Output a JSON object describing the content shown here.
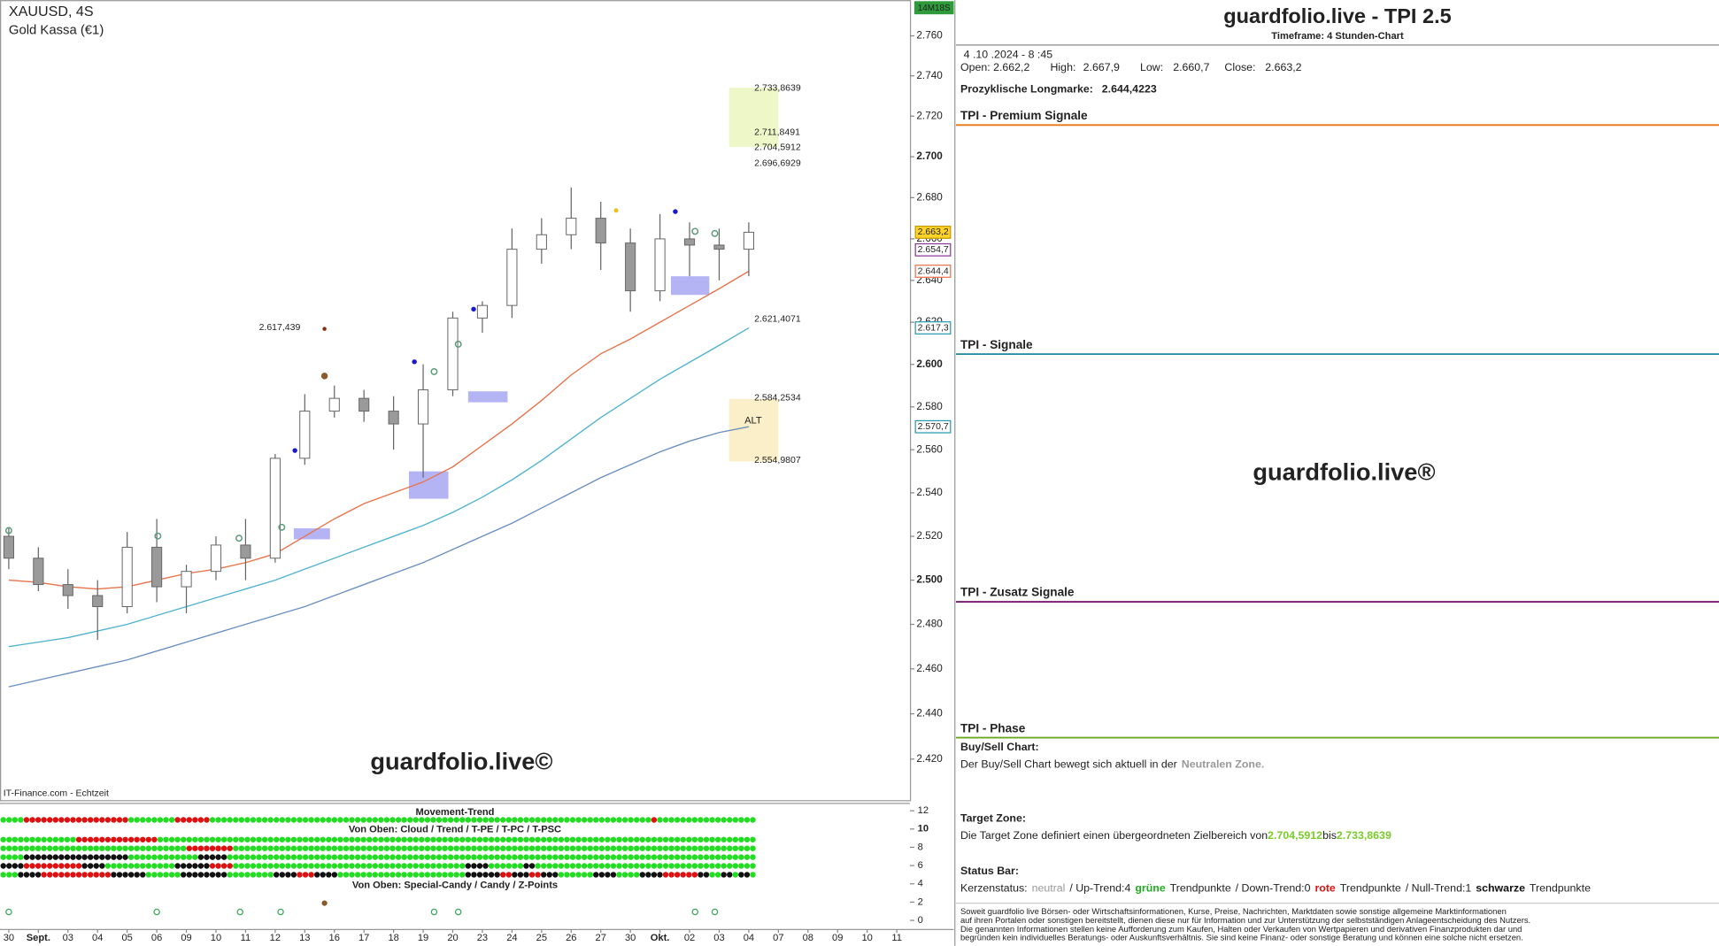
{
  "chart_data": {
    "type": "candlestick",
    "title": "XAUUSD, 4S",
    "subtitle": "Gold Kassa (€1)",
    "source": "IT-Finance.com - Echtzeit",
    "watermark": "guardfolio.live©",
    "timer": "14M18S",
    "zone_label": "ALT",
    "log_scale": true,
    "categories": [
      "30",
      "Sept.",
      "03",
      "04",
      "05",
      "06",
      "09",
      "10",
      "11",
      "12",
      "13",
      "16",
      "17",
      "18",
      "19",
      "20",
      "23",
      "24",
      "25",
      "26",
      "27",
      "30",
      "Okt.",
      "02",
      "03",
      "04",
      "07",
      "08",
      "09",
      "10",
      "11"
    ],
    "open": [
      2520,
      2510,
      2498,
      2493,
      2488,
      2515,
      2497,
      2504,
      2516,
      2510,
      2556,
      2578,
      2584,
      2578,
      2572,
      2588,
      2622,
      2628,
      2655,
      2662,
      2670,
      2658,
      2635,
      2660,
      2657,
      2655,
      null,
      null,
      null,
      null,
      null
    ],
    "high": [
      2524,
      2515,
      2505,
      2500,
      2522,
      2528,
      2507,
      2520,
      2528,
      2558,
      2586,
      2590,
      2588,
      2585,
      2600,
      2625,
      2630,
      2665,
      2670,
      2685,
      2678,
      2665,
      2672,
      2668,
      2665,
      2668,
      null,
      null,
      null,
      null,
      null
    ],
    "low": [
      2505,
      2495,
      2487,
      2473,
      2485,
      2490,
      2485,
      2500,
      2500,
      2508,
      2553,
      2575,
      2573,
      2560,
      2547,
      2585,
      2615,
      2622,
      2648,
      2655,
      2645,
      2625,
      2630,
      2642,
      2640,
      2642,
      null,
      null,
      null,
      null,
      null
    ],
    "close": [
      2510,
      2498,
      2493,
      2488,
      2515,
      2497,
      2504,
      2516,
      2510,
      2556,
      2578,
      2584,
      2578,
      2572,
      2588,
      2622,
      2628,
      2655,
      2662,
      2670,
      2658,
      2635,
      2660,
      2657,
      2655,
      2663.2,
      null,
      null,
      null,
      null,
      null
    ],
    "up_color": "#ffffff",
    "down_color": "#9a9a9a",
    "series": [
      {
        "color": "#e8734a",
        "values": [
          2500,
          2499,
          2497,
          2496,
          2497,
          2500,
          2503,
          2505,
          2508,
          2512,
          2520,
          2528,
          2535,
          2540,
          2545,
          2552,
          2562,
          2572,
          2583,
          2595,
          2605,
          2612,
          2620,
          2628,
          2636,
          2644.4,
          null,
          null,
          null,
          null,
          null
        ]
      },
      {
        "color": "#4fb3cf",
        "values": [
          2470,
          2472,
          2474,
          2477,
          2480,
          2484,
          2488,
          2492,
          2496,
          2500,
          2505,
          2510,
          2515,
          2520,
          2525,
          2531,
          2538,
          2546,
          2555,
          2565,
          2575,
          2584,
          2593,
          2601,
          2609,
          2617.3,
          null,
          null,
          null,
          null,
          null
        ]
      },
      {
        "color": "#6a8fc0",
        "values": [
          2452,
          2455,
          2458,
          2461,
          2464,
          2468,
          2472,
          2476,
          2480,
          2484,
          2488,
          2493,
          2498,
          2503,
          2508,
          2514,
          2520,
          2526,
          2533,
          2540,
          2547,
          2553,
          2559,
          2564,
          2568,
          2570.7,
          null,
          null,
          null,
          null,
          null
        ]
      }
    ],
    "ylim": [
      2402,
      2778
    ],
    "yticks": [
      {
        "value": 2760,
        "label": "2.760"
      },
      {
        "value": 2740,
        "label": "2.740"
      },
      {
        "value": 2720,
        "label": "2.720"
      },
      {
        "value": 2700,
        "label": "2.700"
      },
      {
        "value": 2680,
        "label": "2.680"
      },
      {
        "value": 2660,
        "label": "2.660"
      },
      {
        "value": 2640,
        "label": "2.640"
      },
      {
        "value": 2620,
        "label": "2.620"
      },
      {
        "value": 2600,
        "label": "2.600"
      },
      {
        "value": 2580,
        "label": "2.580"
      },
      {
        "value": 2560,
        "label": "2.560"
      },
      {
        "value": 2540,
        "label": "2.540"
      },
      {
        "value": 2520,
        "label": "2.520"
      },
      {
        "value": 2500,
        "label": "2.500"
      },
      {
        "value": 2480,
        "label": "2.480"
      },
      {
        "value": 2460,
        "label": "2.460"
      },
      {
        "value": 2440,
        "label": "2.440"
      },
      {
        "value": 2420,
        "label": "2.420"
      }
    ],
    "price_tags": [
      {
        "value": 2663.2,
        "label": "2.663,2",
        "color": "#c89a00",
        "fill": "#ffd42a"
      },
      {
        "value": 2654.7,
        "label": "2.654,7",
        "color": "#8a3a9a",
        "fill": "#ffffff"
      },
      {
        "value": 2644.4,
        "label": "2.644,4",
        "color": "#e8734a",
        "fill": "#ffffff"
      },
      {
        "value": 2617.3,
        "label": "2.617,3",
        "color": "#2a9ab0",
        "fill": "#ffffff"
      },
      {
        "value": 2570.7,
        "label": "2.570,7",
        "color": "#2a9ab0",
        "fill": "#ffffff"
      }
    ],
    "levels": [
      {
        "value": 2733.8639,
        "label": "2.733,8639",
        "color": "#888888"
      },
      {
        "value": 2711.8491,
        "label": "2.711,8491",
        "color": "#888888"
      },
      {
        "value": 2704.5912,
        "label": "2.704,5912",
        "color": "#888888"
      },
      {
        "value": 2696.6929,
        "label": "2.696,6929",
        "color": "#e07ad8"
      },
      {
        "value": 2621.4071,
        "label": "2.621,4071",
        "color": "#e07ad8"
      },
      {
        "value": 2584.2534,
        "label": "2.584,2534",
        "color": "#888888"
      },
      {
        "value": 2554.9807,
        "label": "2.554,9807",
        "color": "#888888"
      }
    ],
    "left_level": {
      "value": 2617.439,
      "label": "2.617,439",
      "color": "#b08850"
    }
  },
  "indicator": {
    "title": "Movement-Trend",
    "subtitle": "Von Oben: Cloud / Trend / T-PE / T-PC / T-PSC",
    "footer": "Von Oben: Special-Candy / Candy / Z-Points",
    "ylim": [
      -1,
      12.8
    ],
    "yticks": [
      12,
      10,
      8,
      6,
      4,
      2,
      0
    ],
    "colors": {
      "g": "#22dd22",
      "r": "#dd1111",
      "k": "#111111"
    },
    "rows": [
      "g4r18g8r6g76r1g17",
      "g13r14g103",
      "g32r8g90",
      "g4k18g12k5g91",
      "k4r10k4g12k6r4g40k4g6k2g38",
      "g3k4r12k6g6k8g8k4r3k4g22k6r2k3r2k3g6k4g4k4r6k2g2k2g1k2g1"
    ]
  },
  "panel": {
    "title": "guardfolio.live - TPI 2.5",
    "timeframe": "Timeframe: 4 Stunden-Chart",
    "date": "4 .10 .2024 - 8 :45",
    "ohlc": [
      {
        "label": "Open:",
        "value": "2.662,2"
      },
      {
        "label": "High:",
        "value": "2.667,9"
      },
      {
        "label": "Low:",
        "value": "2.660,7"
      },
      {
        "label": "Close:",
        "value": "2.663,2"
      }
    ],
    "longmarke_label": "Prozyklische Longmarke:",
    "longmarke_value": "2.644,4223",
    "sections": [
      {
        "title": "TPI - Premium Signale",
        "color": "#e8771a"
      },
      {
        "title": "TPI - Signale",
        "color": "#1a86a0"
      },
      {
        "title": "TPI - Zusatz Signale",
        "color": "#7a1a6e"
      },
      {
        "title": "TPI - Phase",
        "color": "#6aa820"
      }
    ],
    "watermark": "guardfolio.live®",
    "buysell_title": "Buy/Sell Chart:",
    "buysell_text": "Der Buy/Sell Chart bewegt sich aktuell in der",
    "buysell_zone": "Neutralen Zone.",
    "target_title": "Target Zone:",
    "target_text": "Die Target Zone definiert einen übergeordneten Zielbereich von",
    "target_from": "2.704,5912",
    "target_mid": "bis",
    "target_to": "2.733,8639",
    "status_title": "Status Bar:",
    "status": [
      {
        "text": "Kerzenstatus:",
        "color": "#222222",
        "bold": false
      },
      {
        "text": "neutral",
        "color": "#999999",
        "bold": false
      },
      {
        "text": "/ Up-Trend:4",
        "color": "#222222",
        "bold": false
      },
      {
        "text": "grüne",
        "color": "#22aa22",
        "bold": true
      },
      {
        "text": "Trendpunkte",
        "color": "#222222",
        "bold": false
      },
      {
        "text": "/ Down-Trend:0",
        "color": "#222222",
        "bold": false
      },
      {
        "text": "rote",
        "color": "#dd1111",
        "bold": true
      },
      {
        "text": "Trendpunkte",
        "color": "#222222",
        "bold": false
      },
      {
        "text": "/ Null-Trend:1",
        "color": "#222222",
        "bold": false
      },
      {
        "text": "schwarze",
        "color": "#111111",
        "bold": true
      },
      {
        "text": "Trendpunkte",
        "color": "#222222",
        "bold": false
      }
    ],
    "disclaimer": [
      "Soweit guardfolio live Börsen- oder Wirtschaftsinformationen, Kurse, Preise, Nachrichten, Marktdaten sowie sonstige allgemeine Marktinformationen",
      "auf ihren Portalen oder sonstigen bereitstellt, dienen diese nur für Information und zur Unterstützung der selbstständigen Anlageentscheidung des Nutzers.",
      "Die genannten Informationen stellen keine Aufforderung zum Kaufen, Halten oder Verkaufen von Wertpapieren und derivativen Finanzprodukten dar und",
      "begründen kein individuelles Beratungs- oder Auskunftsverhältnis. Sie sind keine Finanz- oder sonstige Beratung und können eine solche nicht ersetzen."
    ]
  }
}
